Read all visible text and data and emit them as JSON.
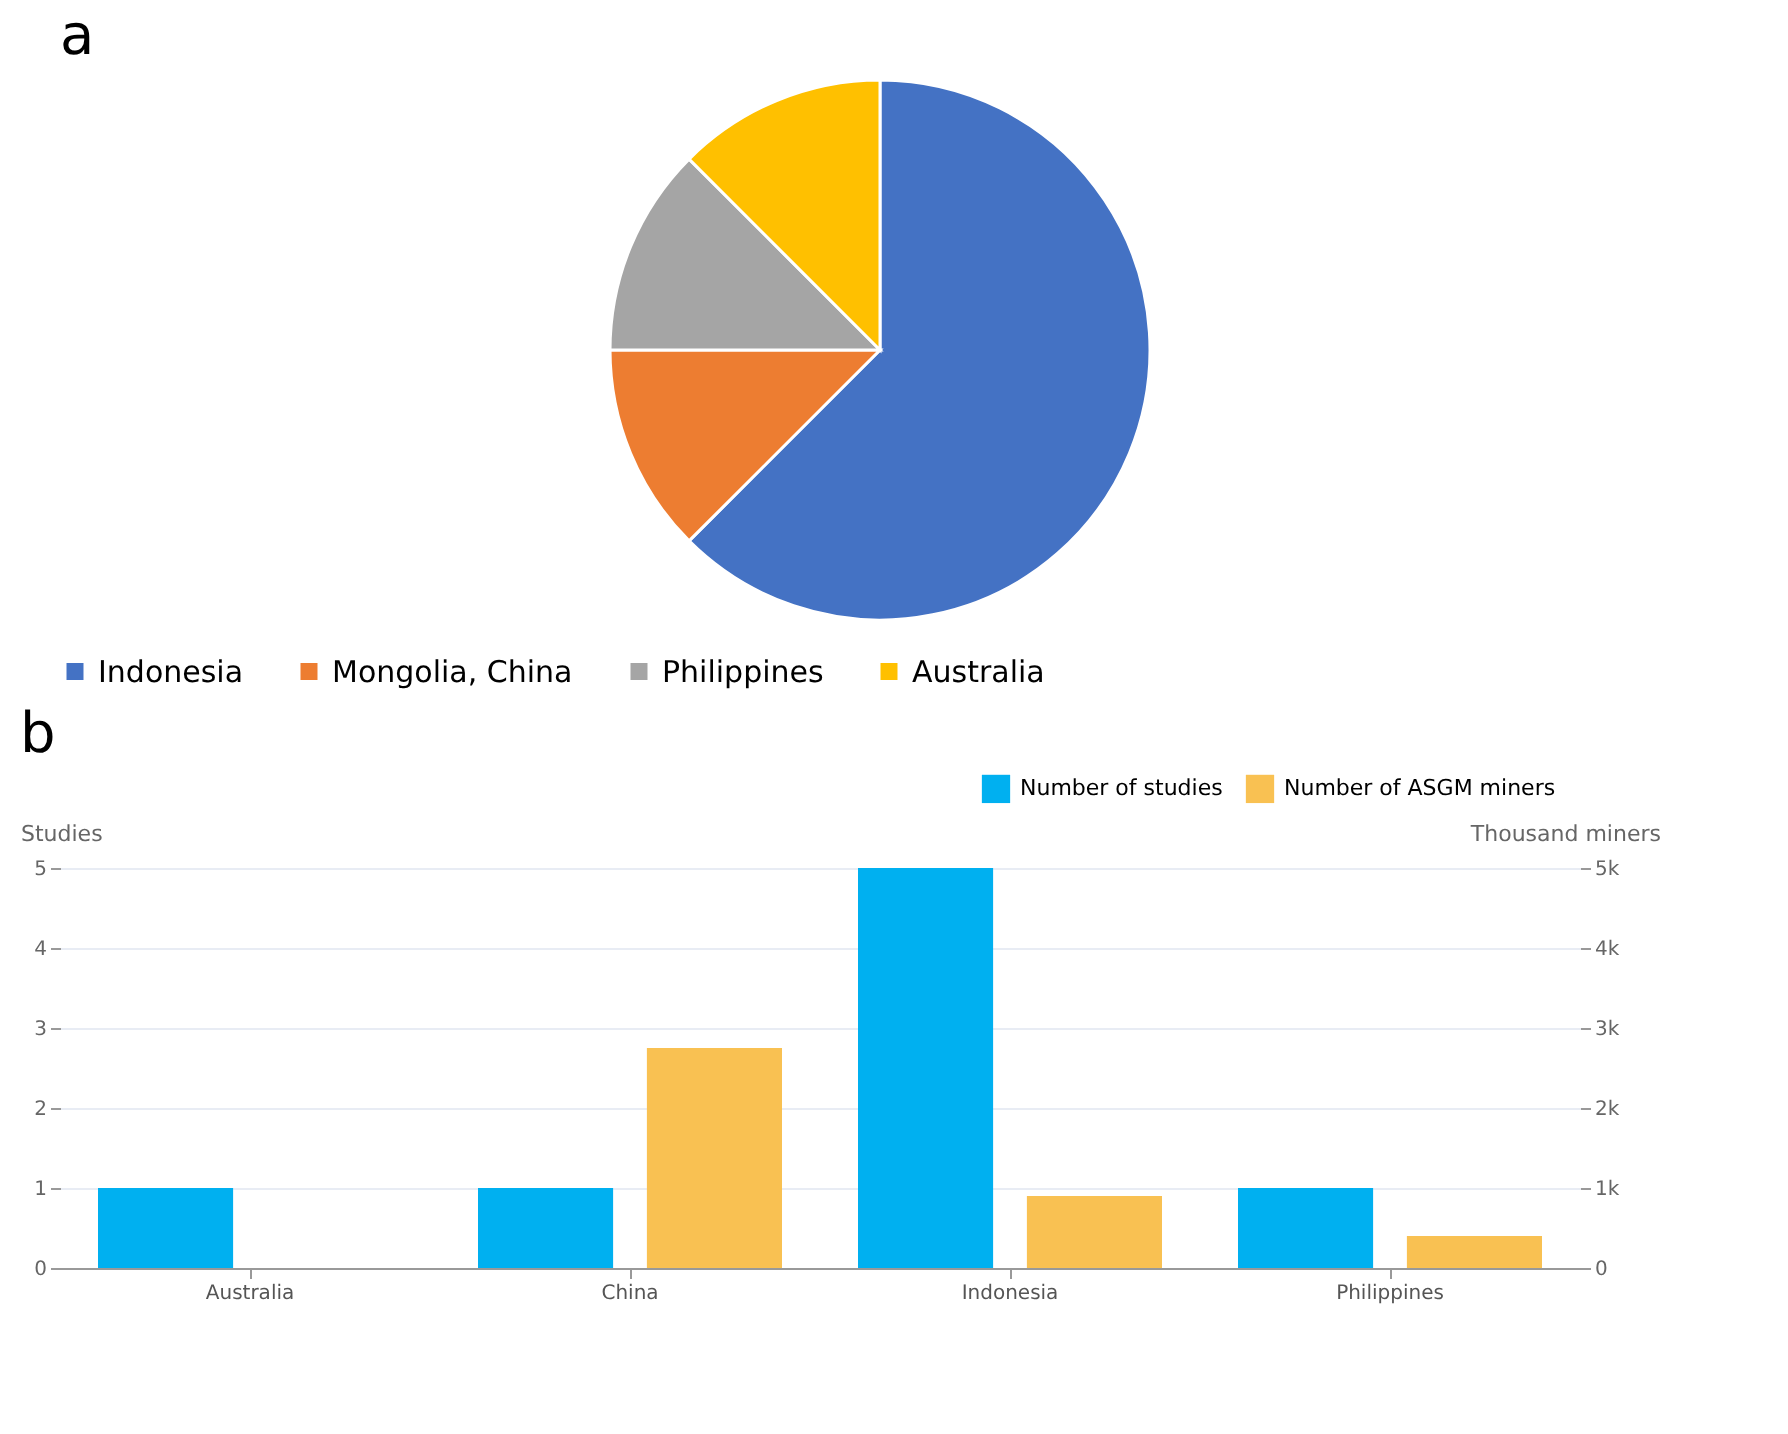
{
  "chart_data": [
    {
      "type": "pie",
      "title": "a",
      "categories": [
        "Indonesia",
        "Mongolia, China",
        "Philippines",
        "Australia"
      ],
      "values": [
        62.5,
        12.5,
        12.5,
        12.5
      ],
      "colors": [
        "#4472c4",
        "#ed7d31",
        "#a5a5a5",
        "#ffc000"
      ],
      "legend": "bottom"
    },
    {
      "type": "bar",
      "title": "b",
      "categories": [
        "Australia",
        "China",
        "Indonesia",
        "Philippines"
      ],
      "ylabel": "Studies",
      "y2label": "Thousand miners",
      "ylim": [
        0,
        5
      ],
      "yticks": [
        0,
        1,
        2,
        3,
        4,
        5
      ],
      "y2lim": [
        0,
        5000
      ],
      "y2ticks": [
        0,
        {
          "value": 1000,
          "label": "1k"
        },
        {
          "value": 2000,
          "label": "2k"
        },
        {
          "value": 3000,
          "label": "3k"
        },
        {
          "value": 4000,
          "label": "4k"
        },
        {
          "value": 5000,
          "label": "5k"
        }
      ],
      "grid": "y",
      "legend": "top right",
      "series": [
        {
          "name": "Number of studies",
          "color": "#00b0f0",
          "values": [
            1,
            1,
            5,
            1
          ]
        },
        {
          "name": "Number of ASGM miners",
          "color": "#f9c152",
          "axis": "y2",
          "values": [
            null,
            2750,
            900,
            400
          ]
        }
      ]
    }
  ]
}
